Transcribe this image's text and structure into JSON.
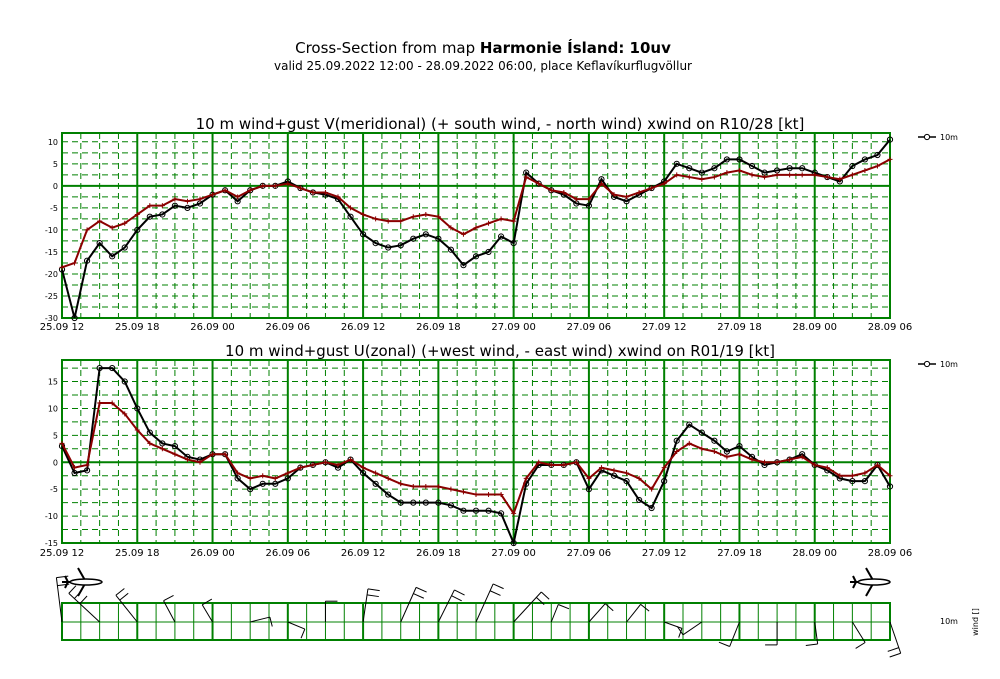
{
  "header": {
    "title_prefix": "Cross-Section from map ",
    "title_bold": "Harmonie Ísland: 10uv",
    "subtitle": "valid 25.09.2022 12:00 - 28.09.2022 06:00, place Keflavíkurflugvöllur"
  },
  "colors": {
    "wind": "#000000",
    "gust": "#8b0000",
    "grid": "#008000"
  },
  "chart_data": [
    {
      "type": "line",
      "title": "10 m wind+gust V(meridional) (+ south wind, - north wind) xwind on R10/28 [kt]",
      "x_tick_labels": [
        "25.09 12",
        "25.09 18",
        "26.09 00",
        "26.09 06",
        "26.09 12",
        "26.09 18",
        "27.09 00",
        "27.09 06",
        "27.09 12",
        "27.09 18",
        "28.09 00",
        "28.09 06"
      ],
      "ylim": [
        -30,
        12
      ],
      "y_ticks": [
        10,
        5,
        0,
        -5,
        -10,
        -15,
        -20,
        -25,
        -30
      ],
      "legend": "10m",
      "series": [
        {
          "name": "wind",
          "values": [
            -19,
            -30,
            -17,
            -13,
            -16,
            -14,
            -10,
            -7,
            -6.5,
            -4.5,
            -5,
            -4,
            -2,
            -1,
            -3.5,
            -1,
            0,
            0,
            1,
            -0.5,
            -1.5,
            -2,
            -3,
            -7,
            -11,
            -13,
            -14,
            -13.5,
            -12,
            -11,
            -12,
            -14.5,
            -18,
            -16,
            -15,
            -11.5,
            -13,
            3,
            0.5,
            -1,
            -2,
            -4,
            -4.5,
            1.5,
            -2.5,
            -3.5,
            -2,
            -0.5,
            1,
            5,
            4,
            3,
            4,
            6,
            6,
            4.5,
            3,
            3.5,
            4,
            4,
            3,
            2,
            1,
            4.5,
            6,
            7,
            10.5
          ]
        },
        {
          "name": "gust",
          "values": [
            -18.5,
            -17.5,
            -10,
            -8,
            -9.5,
            -8.5,
            -6.5,
            -4.5,
            -4.5,
            -3,
            -3.5,
            -3,
            -2,
            -1,
            -2.5,
            -1,
            0,
            0,
            0.5,
            -0.5,
            -1.5,
            -1.5,
            -2.5,
            -5,
            -6.5,
            -7.5,
            -8,
            -8,
            -7,
            -6.5,
            -7,
            -9.5,
            -11,
            -9.5,
            -8.5,
            -7.5,
            -8,
            2,
            0.5,
            -1,
            -1.5,
            -3,
            -3,
            0.5,
            -2,
            -2.5,
            -1.5,
            -0.5,
            0.5,
            2.5,
            2,
            1.5,
            2,
            3,
            3.5,
            2.5,
            2,
            2.5,
            2.5,
            2.5,
            2.5,
            2,
            1.5,
            2.5,
            3.5,
            4.5,
            6
          ]
        }
      ]
    },
    {
      "type": "line",
      "title": "10 m wind+gust U(zonal) (+west wind, - east wind) xwind on R01/19 [kt]",
      "x_tick_labels": [
        "25.09 12",
        "25.09 18",
        "26.09 00",
        "26.09 06",
        "26.09 12",
        "26.09 18",
        "27.09 00",
        "27.09 06",
        "27.09 12",
        "27.09 18",
        "28.09 00",
        "28.09 06"
      ],
      "ylim": [
        -15,
        19
      ],
      "y_ticks": [
        15,
        10,
        5,
        0,
        -5,
        -10,
        -15
      ],
      "legend": "10m",
      "series": [
        {
          "name": "wind",
          "values": [
            3,
            -2,
            -1.5,
            17.5,
            17.5,
            15,
            10,
            5.5,
            3.5,
            3,
            1,
            0.5,
            1.5,
            1.5,
            -3,
            -5,
            -4,
            -4,
            -3,
            -1,
            -0.5,
            0,
            -1,
            0.5,
            -2,
            -4,
            -6,
            -7.5,
            -7.5,
            -7.5,
            -7.5,
            -8,
            -9,
            -9,
            -9,
            -9.5,
            -15,
            -4,
            -0.5,
            -0.5,
            -0.5,
            0,
            -5,
            -1.5,
            -2.5,
            -3.5,
            -7,
            -8.5,
            -3.5,
            4,
            7,
            5.5,
            4,
            2,
            3,
            1,
            -0.5,
            0,
            0.5,
            1.5,
            -0.5,
            -1.5,
            -3,
            -3.5,
            -3.5,
            -0.5,
            -4.5
          ]
        },
        {
          "name": "gust",
          "values": [
            3.5,
            -1,
            -0.5,
            11,
            11,
            9,
            6,
            3.5,
            2.5,
            1.5,
            0.5,
            0,
            1.5,
            1.5,
            -2,
            -3,
            -2.5,
            -3,
            -2,
            -1,
            -0.5,
            0,
            -0.5,
            0.5,
            -1,
            -2,
            -3,
            -4,
            -4.5,
            -4.5,
            -4.5,
            -5,
            -5.5,
            -6,
            -6,
            -6,
            -9.5,
            -3,
            0,
            -0.5,
            -0.5,
            0,
            -3,
            -1,
            -1.5,
            -2,
            -3,
            -5,
            -1,
            2,
            3.5,
            2.5,
            2,
            1,
            1.5,
            0.5,
            0,
            0,
            0.5,
            1,
            -0.5,
            -1,
            -2.5,
            -2.5,
            -2,
            -0.5,
            -2.5
          ]
        }
      ]
    }
  ],
  "barb_panel": {
    "legend": "10m",
    "axis_label": "wind []"
  }
}
